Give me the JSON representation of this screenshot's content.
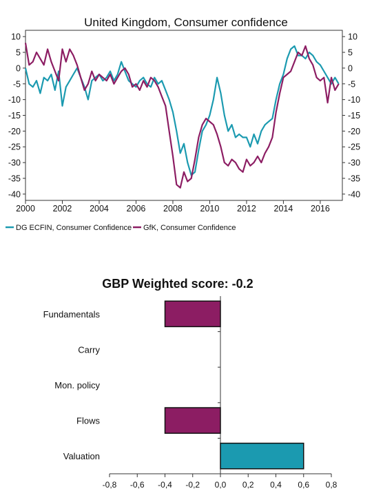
{
  "chart_data": [
    {
      "type": "line",
      "title": "United Kingdom, Consumer confidence",
      "xlabel": "",
      "ylabel": "",
      "x_ticks": [
        "2000",
        "2002",
        "2004",
        "2006",
        "2008",
        "2010",
        "2012",
        "2014",
        "2016"
      ],
      "y_ticks": [
        "10",
        "5",
        "0",
        "-5",
        "-10",
        "-15",
        "-20",
        "-25",
        "-30",
        "-35",
        "-40"
      ],
      "xlim": [
        2000,
        2017.2
      ],
      "ylim": [
        -42,
        12
      ],
      "grid": false,
      "legend_position": "bottom-left",
      "series": [
        {
          "name": "DG ECFIN, Consumer Confidence",
          "color": "#1b9ab0",
          "x": [
            2000.0,
            2000.2,
            2000.4,
            2000.6,
            2000.8,
            2001.0,
            2001.2,
            2001.4,
            2001.6,
            2001.8,
            2002.0,
            2002.2,
            2002.4,
            2002.6,
            2002.8,
            2003.0,
            2003.2,
            2003.4,
            2003.6,
            2003.8,
            2004.0,
            2004.2,
            2004.4,
            2004.6,
            2004.8,
            2005.0,
            2005.2,
            2005.4,
            2005.6,
            2005.8,
            2006.0,
            2006.2,
            2006.4,
            2006.6,
            2006.8,
            2007.0,
            2007.2,
            2007.4,
            2007.6,
            2007.8,
            2008.0,
            2008.2,
            2008.4,
            2008.6,
            2008.8,
            2009.0,
            2009.2,
            2009.4,
            2009.6,
            2009.8,
            2010.0,
            2010.2,
            2010.4,
            2010.6,
            2010.8,
            2011.0,
            2011.2,
            2011.4,
            2011.6,
            2011.8,
            2012.0,
            2012.2,
            2012.4,
            2012.6,
            2012.8,
            2013.0,
            2013.2,
            2013.4,
            2013.6,
            2013.8,
            2014.0,
            2014.2,
            2014.4,
            2014.6,
            2014.8,
            2015.0,
            2015.2,
            2015.4,
            2015.6,
            2015.8,
            2016.0,
            2016.2,
            2016.4,
            2016.6,
            2016.8,
            2017.0
          ],
          "values": [
            0,
            -5,
            -6,
            -4,
            -8,
            -3,
            -4,
            -2,
            -7,
            -1,
            -12,
            -6,
            -4,
            -2,
            0,
            -3,
            -6,
            -10,
            -4,
            -3,
            -2,
            -4,
            -3,
            -1,
            -4,
            -2,
            2,
            -1,
            -4,
            -5,
            -6,
            -4,
            -3,
            -5,
            -6,
            -3,
            -5,
            -4,
            -7,
            -10,
            -14,
            -20,
            -27,
            -24,
            -30,
            -34,
            -33,
            -26,
            -20,
            -18,
            -15,
            -10,
            -3,
            -8,
            -15,
            -20,
            -18,
            -22,
            -21,
            -22,
            -22,
            -25,
            -21,
            -24,
            -20,
            -18,
            -17,
            -16,
            -10,
            -5,
            -2,
            3,
            6,
            7,
            4,
            4,
            3,
            5,
            4,
            2,
            1,
            -1,
            -3,
            -5,
            -3,
            -5
          ]
        },
        {
          "name": "GfK, Consumer Confidence",
          "color": "#8c1d63",
          "x": [
            2000.0,
            2000.2,
            2000.4,
            2000.6,
            2000.8,
            2001.0,
            2001.2,
            2001.4,
            2001.6,
            2001.8,
            2002.0,
            2002.2,
            2002.4,
            2002.6,
            2002.8,
            2003.0,
            2003.2,
            2003.4,
            2003.6,
            2003.8,
            2004.0,
            2004.2,
            2004.4,
            2004.6,
            2004.8,
            2005.0,
            2005.2,
            2005.4,
            2005.6,
            2005.8,
            2006.0,
            2006.2,
            2006.4,
            2006.6,
            2006.8,
            2007.0,
            2007.2,
            2007.4,
            2007.6,
            2007.8,
            2008.0,
            2008.2,
            2008.4,
            2008.6,
            2008.8,
            2009.0,
            2009.2,
            2009.4,
            2009.6,
            2009.8,
            2010.0,
            2010.2,
            2010.4,
            2010.6,
            2010.8,
            2011.0,
            2011.2,
            2011.4,
            2011.6,
            2011.8,
            2012.0,
            2012.2,
            2012.4,
            2012.6,
            2012.8,
            2013.0,
            2013.2,
            2013.4,
            2013.6,
            2013.8,
            2014.0,
            2014.2,
            2014.4,
            2014.6,
            2014.8,
            2015.0,
            2015.2,
            2015.4,
            2015.6,
            2015.8,
            2016.0,
            2016.2,
            2016.4,
            2016.6,
            2016.8,
            2017.0
          ],
          "values": [
            8,
            1,
            2,
            5,
            3,
            1,
            6,
            2,
            -1,
            -4,
            6,
            2,
            6,
            4,
            1,
            -3,
            -7,
            -5,
            -1,
            -4,
            -2,
            -3,
            -4,
            -2,
            -5,
            -3,
            -1,
            0,
            -2,
            -6,
            -5,
            -7,
            -4,
            -6,
            -3,
            -4,
            -6,
            -9,
            -12,
            -20,
            -28,
            -37,
            -38,
            -33,
            -36,
            -35,
            -29,
            -22,
            -18,
            -16,
            -17,
            -18,
            -21,
            -25,
            -30,
            -31,
            -29,
            -30,
            -32,
            -33,
            -29,
            -31,
            -30,
            -28,
            -30,
            -27,
            -25,
            -22,
            -14,
            -8,
            -3,
            -2,
            -1,
            2,
            5,
            4,
            7,
            3,
            1,
            -3,
            -4,
            -3,
            -11,
            -3,
            -7,
            -5
          ]
        }
      ]
    },
    {
      "type": "bar",
      "orientation": "horizontal",
      "title": "GBP Weighted score: -0.2",
      "xlabel": "",
      "ylabel": "",
      "categories": [
        "Fundamentals",
        "Carry",
        "Mon. policy",
        "Flows",
        "Valuation"
      ],
      "values": [
        -0.4,
        0,
        0,
        -0.4,
        0.6
      ],
      "x_ticks": [
        "-0,8",
        "-0,6",
        "-0,4",
        "-0,2",
        "0,0",
        "0,2",
        "0,4",
        "0,6",
        "0,8"
      ],
      "xlim": [
        -0.8,
        0.8
      ],
      "grid": false,
      "negative_color": "#8c1d63",
      "positive_color": "#1b9ab0"
    }
  ]
}
